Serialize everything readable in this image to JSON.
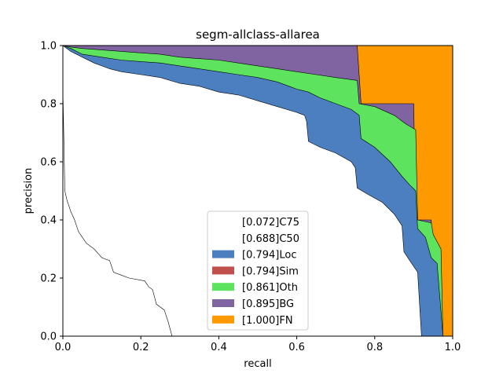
{
  "chart_data": {
    "type": "area",
    "title": "segm-allclass-allarea",
    "xlabel": "recall",
    "ylabel": "precision",
    "xlim": [
      0,
      1
    ],
    "ylim": [
      0,
      1
    ],
    "x_ticks": [
      "0.0",
      "0.2",
      "0.4",
      "0.6",
      "0.8",
      "1.0"
    ],
    "y_ticks": [
      "0.0",
      "0.2",
      "0.4",
      "0.6",
      "0.8",
      "1.0"
    ],
    "legend_position": "lower center",
    "grid": false,
    "series": [
      {
        "name": "[0.072]C75",
        "style": "line",
        "color": "#ffffff",
        "points": [
          [
            0,
            0.85
          ],
          [
            0.005,
            0.5
          ],
          [
            0.01,
            0.47
          ],
          [
            0.02,
            0.43
          ],
          [
            0.03,
            0.4
          ],
          [
            0.04,
            0.36
          ],
          [
            0.05,
            0.34
          ],
          [
            0.06,
            0.32
          ],
          [
            0.08,
            0.3
          ],
          [
            0.1,
            0.27
          ],
          [
            0.12,
            0.26
          ],
          [
            0.13,
            0.22
          ],
          [
            0.15,
            0.21
          ],
          [
            0.17,
            0.2
          ],
          [
            0.21,
            0.19
          ],
          [
            0.22,
            0.17
          ],
          [
            0.23,
            0.16
          ],
          [
            0.24,
            0.11
          ],
          [
            0.26,
            0.09
          ],
          [
            0.27,
            0.05
          ],
          [
            0.28,
            0.0
          ]
        ]
      },
      {
        "name": "[0.688]C50",
        "style": "area",
        "color": "#ffffff",
        "points": [
          [
            0,
            1.0
          ],
          [
            0.02,
            0.98
          ],
          [
            0.05,
            0.96
          ],
          [
            0.08,
            0.94
          ],
          [
            0.12,
            0.92
          ],
          [
            0.15,
            0.91
          ],
          [
            0.2,
            0.9
          ],
          [
            0.25,
            0.89
          ],
          [
            0.3,
            0.87
          ],
          [
            0.35,
            0.86
          ],
          [
            0.4,
            0.84
          ],
          [
            0.45,
            0.83
          ],
          [
            0.5,
            0.81
          ],
          [
            0.55,
            0.79
          ],
          [
            0.6,
            0.77
          ],
          [
            0.62,
            0.76
          ],
          [
            0.625,
            0.74
          ],
          [
            0.63,
            0.67
          ],
          [
            0.66,
            0.65
          ],
          [
            0.7,
            0.63
          ],
          [
            0.74,
            0.6
          ],
          [
            0.75,
            0.58
          ],
          [
            0.755,
            0.51
          ],
          [
            0.78,
            0.49
          ],
          [
            0.82,
            0.46
          ],
          [
            0.85,
            0.42
          ],
          [
            0.87,
            0.38
          ],
          [
            0.875,
            0.29
          ],
          [
            0.89,
            0.26
          ],
          [
            0.91,
            0.22
          ],
          [
            0.92,
            0.0
          ],
          [
            1.0,
            0.0
          ]
        ]
      },
      {
        "name": "[0.794]Loc",
        "style": "area",
        "color": "#4c7fc0",
        "points": [
          [
            0,
            1.0
          ],
          [
            0.02,
            0.99
          ],
          [
            0.05,
            0.97
          ],
          [
            0.1,
            0.96
          ],
          [
            0.15,
            0.95
          ],
          [
            0.2,
            0.945
          ],
          [
            0.25,
            0.94
          ],
          [
            0.3,
            0.93
          ],
          [
            0.35,
            0.92
          ],
          [
            0.4,
            0.91
          ],
          [
            0.45,
            0.9
          ],
          [
            0.5,
            0.89
          ],
          [
            0.55,
            0.875
          ],
          [
            0.58,
            0.86
          ],
          [
            0.6,
            0.85
          ],
          [
            0.63,
            0.84
          ],
          [
            0.66,
            0.82
          ],
          [
            0.7,
            0.8
          ],
          [
            0.74,
            0.78
          ],
          [
            0.76,
            0.76
          ],
          [
            0.765,
            0.68
          ],
          [
            0.8,
            0.65
          ],
          [
            0.84,
            0.6
          ],
          [
            0.87,
            0.55
          ],
          [
            0.89,
            0.52
          ],
          [
            0.905,
            0.5
          ],
          [
            0.91,
            0.37
          ],
          [
            0.93,
            0.34
          ],
          [
            0.945,
            0.27
          ],
          [
            0.96,
            0.25
          ],
          [
            0.975,
            0.0
          ],
          [
            1.0,
            0.0
          ]
        ]
      },
      {
        "name": "[0.794]Sim",
        "style": "area",
        "color": "#c0504d",
        "points": []
      },
      {
        "name": "[0.861]Oth",
        "style": "area",
        "color": "#5ee35e",
        "points": [
          [
            0,
            1.0
          ],
          [
            0.02,
            0.995
          ],
          [
            0.05,
            0.99
          ],
          [
            0.1,
            0.985
          ],
          [
            0.15,
            0.98
          ],
          [
            0.2,
            0.975
          ],
          [
            0.25,
            0.97
          ],
          [
            0.3,
            0.96
          ],
          [
            0.35,
            0.955
          ],
          [
            0.4,
            0.95
          ],
          [
            0.45,
            0.94
          ],
          [
            0.5,
            0.93
          ],
          [
            0.55,
            0.92
          ],
          [
            0.6,
            0.91
          ],
          [
            0.65,
            0.9
          ],
          [
            0.7,
            0.89
          ],
          [
            0.755,
            0.88
          ],
          [
            0.76,
            0.8
          ],
          [
            0.8,
            0.79
          ],
          [
            0.85,
            0.76
          ],
          [
            0.88,
            0.73
          ],
          [
            0.905,
            0.71
          ],
          [
            0.91,
            0.4
          ],
          [
            0.945,
            0.39
          ],
          [
            0.95,
            0.35
          ],
          [
            0.97,
            0.3
          ],
          [
            0.975,
            0.0
          ],
          [
            1.0,
            0.0
          ]
        ]
      },
      {
        "name": "[0.895]BG",
        "style": "area",
        "color": "#8064a2",
        "points": [
          [
            0,
            1.0
          ],
          [
            0.755,
            1.0
          ],
          [
            0.765,
            0.8
          ],
          [
            0.9,
            0.8
          ],
          [
            0.905,
            0.4
          ],
          [
            0.945,
            0.4
          ],
          [
            0.955,
            0.0
          ],
          [
            1.0,
            0.0
          ]
        ]
      },
      {
        "name": "[1.000]FN",
        "style": "area",
        "color": "#ff9900",
        "points": [
          [
            0,
            1.0
          ],
          [
            1.0,
            1.0
          ],
          [
            1.0,
            0.0
          ]
        ]
      }
    ]
  }
}
